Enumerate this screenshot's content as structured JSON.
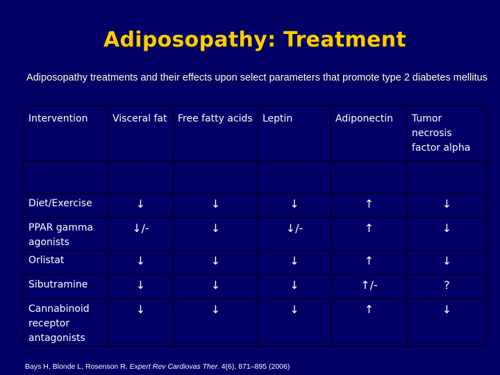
{
  "title": "Adiposopathy: Treatment",
  "subtitle": "Adiposopathy treatments and their effects upon select parameters that promote type 2 diabetes mellitus",
  "colors": {
    "background": "#000066",
    "title": "#ffcc00",
    "text": "#ffffff"
  },
  "table": {
    "headers": [
      "Intervention",
      "Visceral fat",
      "Free fatty acids",
      "Leptin",
      "Adiponectin",
      "Tumor necrosis factor alpha"
    ],
    "rows": [
      {
        "intervention": "Diet/Exercise",
        "visceral_fat": "↓",
        "free_fatty_acids": "↓",
        "leptin": "↓",
        "adiponectin": "↑",
        "tnf_alpha": "↓"
      },
      {
        "intervention": "PPAR gamma agonists",
        "visceral_fat": "↓/-",
        "free_fatty_acids": "↓",
        "leptin": "↓/-",
        "adiponectin": "↑",
        "tnf_alpha": "↓"
      },
      {
        "intervention": "Orlistat",
        "visceral_fat": "↓",
        "free_fatty_acids": "↓",
        "leptin": "↓",
        "adiponectin": "↑",
        "tnf_alpha": "↓"
      },
      {
        "intervention": "Sibutramine",
        "visceral_fat": "↓",
        "free_fatty_acids": "↓",
        "leptin": "↓",
        "adiponectin": "↑/-",
        "tnf_alpha": "?"
      },
      {
        "intervention": "Cannabinoid receptor antagonists",
        "visceral_fat": "↓",
        "free_fatty_acids": "↓",
        "leptin": "↓",
        "adiponectin": "↑",
        "tnf_alpha": "↓"
      }
    ]
  },
  "citation": {
    "authors": "Bays H, Blonde L, Rosenson R.",
    "journal": "Expert Rev Cardiovas Ther.",
    "details": "4(6), 871–895 (2006)"
  }
}
